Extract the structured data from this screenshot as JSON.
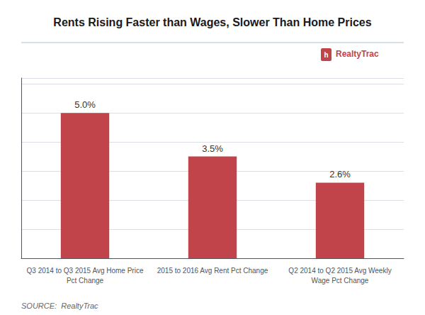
{
  "chart_data": {
    "type": "bar",
    "title": "Rents Rising Faster than Wages, Slower Than Home Prices",
    "categories": [
      "Q3 2014 to Q3 2015 Avg Home Price\nPct Change",
      "2015 to 2016 Avg Rent Pct Change",
      "Q2 2014 to Q2 2015 Avg Weekly\nWage Pct Change"
    ],
    "values": [
      5.0,
      3.5,
      2.6
    ],
    "value_labels": [
      "5.0%",
      "3.5%",
      "2.6%"
    ],
    "data_labels": true,
    "color": "#c0444a",
    "ylim": [
      0,
      6.2
    ],
    "yticks": [
      0,
      1,
      2,
      3,
      4,
      5,
      6
    ],
    "grid": true,
    "tick_labels": "x",
    "annotations": [
      "h",
      "RealtyTrac",
      "SOURCE:  RealtyTrac"
    ]
  }
}
